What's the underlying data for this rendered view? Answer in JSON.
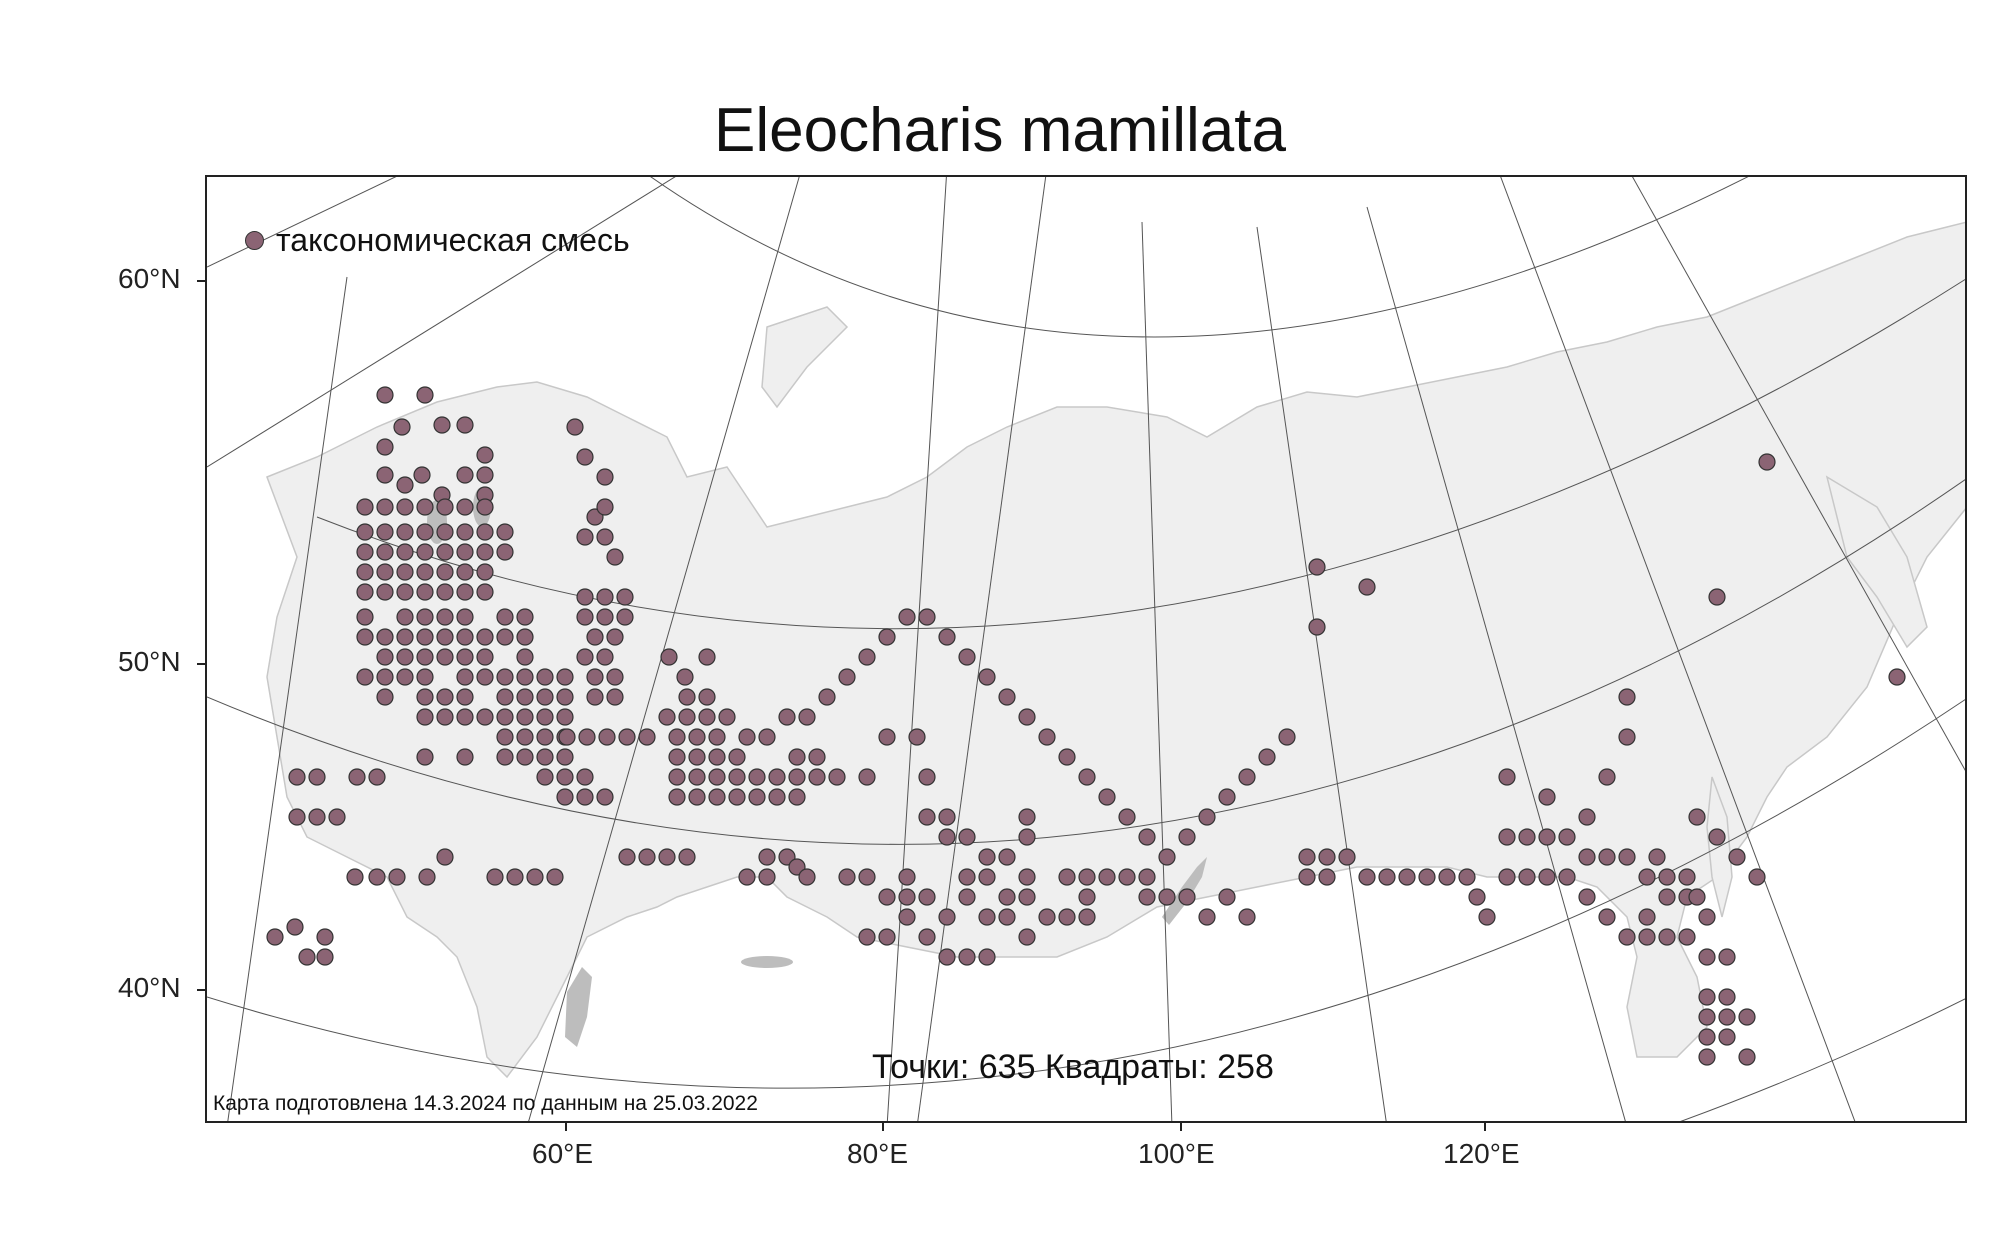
{
  "title": "Eleocharis mamillata",
  "legend": {
    "label": "таксономическая смесь",
    "color": "#8b6474"
  },
  "stats": {
    "text": "Точки: 635 Квадраты: 258"
  },
  "footer": {
    "text": "Карта подготовлена 14.3.2024 по данным на 25.03.2022"
  },
  "axes": {
    "lat_labels": [
      "60°N",
      "50°N",
      "40°N"
    ],
    "lon_labels": [
      "60°E",
      "80°E",
      "100°E",
      "120°E"
    ]
  },
  "colors": {
    "land": "#efefef",
    "grid": "#555555",
    "water": "#bdbdbd",
    "point": "#8b6474"
  }
}
